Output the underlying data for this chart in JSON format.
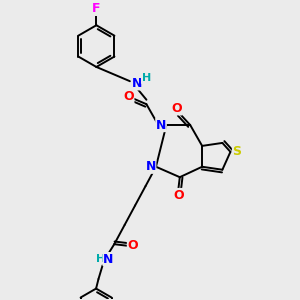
{
  "bg_color": "#ebebeb",
  "colors": {
    "N": "#0000ff",
    "O": "#ff0000",
    "S": "#cccc00",
    "F": "#ff00ff",
    "H": "#00aaaa",
    "C": "#000000"
  },
  "font_size": 9,
  "figsize": [
    3.0,
    3.0
  ],
  "dpi": 100
}
